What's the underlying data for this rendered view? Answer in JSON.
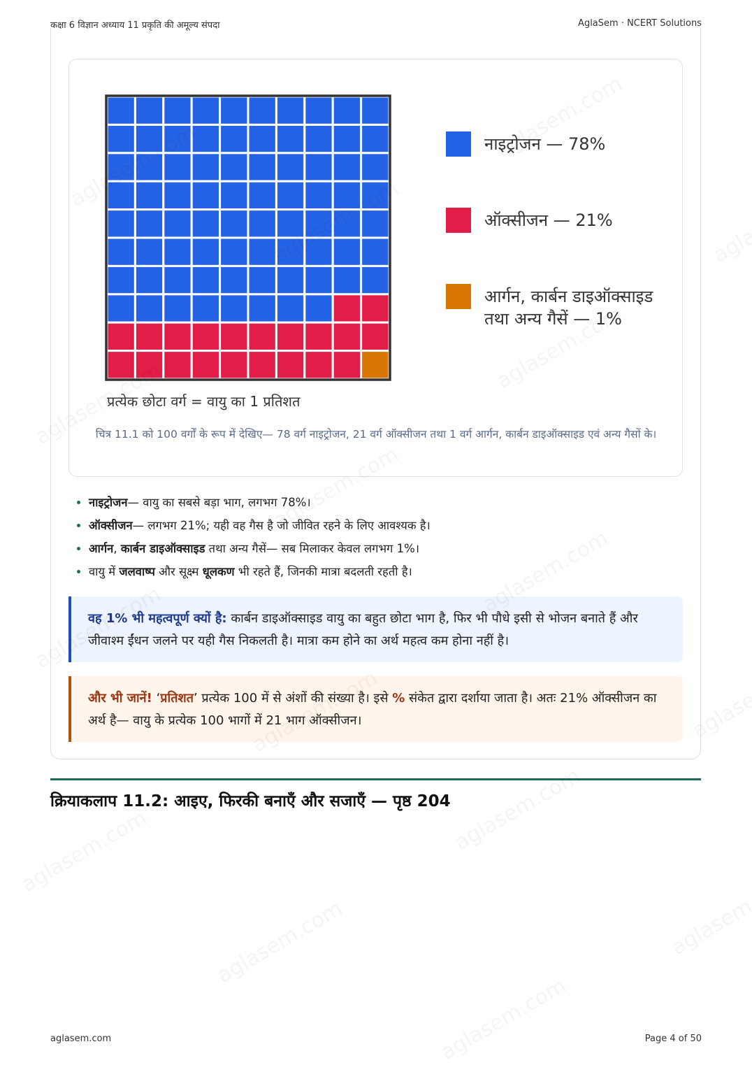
{
  "header": {
    "left": "कक्षा 6 विज्ञान अध्याय 11 प्रकृति की अमूल्य संपदा",
    "right": "AglaSem · NCERT Solutions"
  },
  "chart_data": {
    "type": "waffle",
    "series": [
      {
        "name": "नाइट्रोजन — 78%",
        "color": "#2563e6",
        "value": 78
      },
      {
        "name": "ऑक्सीजन — 21%",
        "color": "#e11d48",
        "value": 21
      },
      {
        "name": "आर्गन, कार्बन डाइऑक्साइड तथा अन्य गैसें — 1%",
        "color": "#d97706",
        "value": 1
      }
    ],
    "note": "प्रत्येक छोटा वर्ग = वायु का 1 प्रतिशत",
    "caption": "चित्र 11.1 को 100 वर्गों के रूप में देखिए— 78 वर्ग नाइट्रोजन, 21 वर्ग ऑक्सीजन तथा 1 वर्ग आर्गन, कार्बन डाइऑक्साइड एवं अन्य गैसों के।"
  },
  "bullets": [
    [
      {
        "text": "नाइट्रोजन",
        "bold": true
      },
      {
        "text": "— वायु का सबसे बड़ा भाग, लगभग 78%।"
      }
    ],
    [
      {
        "text": "ऑक्सीजन",
        "bold": true
      },
      {
        "text": "— लगभग 21%; यही वह गैस है जो जीवित रहने के लिए आवश्यक है।"
      }
    ],
    [
      {
        "text": "आर्गन",
        "bold": true
      },
      {
        "text": ", "
      },
      {
        "text": "कार्बन डाइऑक्साइड",
        "bold": true
      },
      {
        "text": " तथा अन्य गैसें— सब मिलाकर केवल लगभग 1%।"
      }
    ],
    [
      {
        "text": "वायु में "
      },
      {
        "text": "जलवाष्प",
        "bold": true
      },
      {
        "text": " और सूक्ष्म "
      },
      {
        "text": "धूलकण",
        "bold": true
      },
      {
        "text": " भी रहते हैं, जिनकी मात्रा बदलती रहती है।"
      }
    ]
  ],
  "info_box": [
    {
      "text": "वह 1% भी महत्वपूर्ण क्यों है:",
      "bold": true
    },
    {
      "text": " कार्बन डाइऑक्साइड वायु का बहुत छोटा भाग है, फिर भी पौधे इसी से भोजन बनाते हैं और जीवाश्म ईंधन जलने पर यही गैस निकलती है। मात्रा कम होने का अर्थ महत्व कम होना नहीं है।"
    }
  ],
  "tip_box": [
    {
      "text": "और भी जानें!",
      "bold": true
    },
    {
      "text": " ‘"
    },
    {
      "text": "प्रतिशत",
      "bold": true
    },
    {
      "text": "’ प्रत्येक 100 में से अंशों की संख्या है। इसे "
    },
    {
      "text": "%",
      "bold": true
    },
    {
      "text": " संकेत द्वारा दर्शाया जाता है। अतः 21% ऑक्सीजन का अर्थ है— वायु के प्रत्येक 100 भागों में 21 भाग ऑक्सीजन।"
    }
  ],
  "section_heading": "क्रियाकलाप 11.2: आइए, फिरकी बनाएँ और सजाएँ — पृष्ठ 204",
  "footer": {
    "left": "aglasem.com",
    "right": "Page 4 of 50"
  },
  "watermark": "aglasem.com"
}
